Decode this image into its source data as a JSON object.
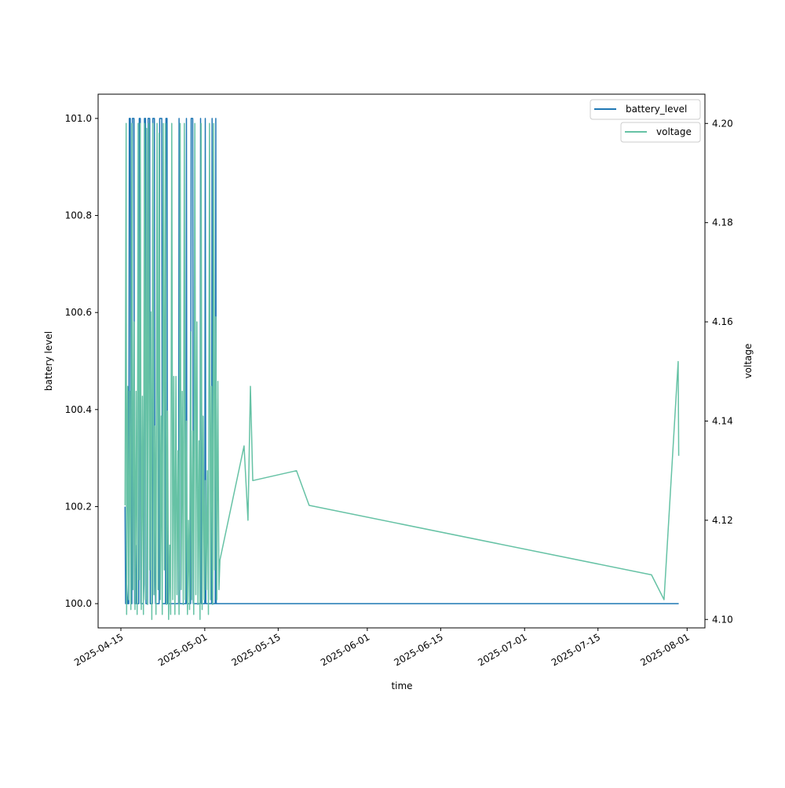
{
  "chart_data": {
    "type": "line",
    "title": "",
    "xlabel": "time",
    "ylabel_left": "battery level",
    "ylabel_right": "voltage",
    "x_unit": "days since 2025-04-15",
    "xlim": [
      -4.34,
      111.4
    ],
    "ylim_left": [
      99.95,
      101.05
    ],
    "ylim_right": [
      4.0983,
      4.2059
    ],
    "x_ticks": [
      {
        "day": 0,
        "label": "2025-04-15"
      },
      {
        "day": 16,
        "label": "2025-05-01"
      },
      {
        "day": 30,
        "label": "2025-05-15"
      },
      {
        "day": 47,
        "label": "2025-06-01"
      },
      {
        "day": 61,
        "label": "2025-06-15"
      },
      {
        "day": 77,
        "label": "2025-07-01"
      },
      {
        "day": 91,
        "label": "2025-07-15"
      },
      {
        "day": 108,
        "label": "2025-08-01"
      }
    ],
    "y_ticks_left": [
      {
        "value": 100.0,
        "label": "100.0"
      },
      {
        "value": 100.2,
        "label": "100.2"
      },
      {
        "value": 100.4,
        "label": "100.4"
      },
      {
        "value": 100.6,
        "label": "100.6"
      },
      {
        "value": 100.8,
        "label": "100.8"
      },
      {
        "value": 101.0,
        "label": "101.0"
      }
    ],
    "y_ticks_right": [
      {
        "value": 4.1,
        "label": "4.10"
      },
      {
        "value": 4.12,
        "label": "4.12"
      },
      {
        "value": 4.14,
        "label": "4.14"
      },
      {
        "value": 4.16,
        "label": "4.16"
      },
      {
        "value": 4.18,
        "label": "4.18"
      },
      {
        "value": 4.2,
        "label": "4.20"
      }
    ],
    "legend_left": {
      "label": "battery_level",
      "placement": "upper-right"
    },
    "legend_right": {
      "label": "voltage",
      "placement": "upper-right"
    },
    "series": [
      {
        "name": "battery_level",
        "axis": "left",
        "color": "#1f77b4",
        "points": [
          [
            0.8,
            100.2
          ],
          [
            0.9,
            100
          ],
          [
            1.1,
            100.04
          ],
          [
            1.3,
            100
          ],
          [
            1.5,
            100
          ],
          [
            1.6,
            101
          ],
          [
            1.8,
            101
          ],
          [
            1.9,
            100
          ],
          [
            2.1,
            100
          ],
          [
            2.2,
            101
          ],
          [
            2.5,
            101
          ],
          [
            2.6,
            100
          ],
          [
            2.9,
            100
          ],
          [
            3.0,
            100.12
          ],
          [
            3.1,
            100
          ],
          [
            3.4,
            100
          ],
          [
            3.5,
            101
          ],
          [
            3.7,
            101
          ],
          [
            3.8,
            100
          ],
          [
            4.3,
            100
          ],
          [
            4.4,
            100.04
          ],
          [
            4.5,
            101
          ],
          [
            4.7,
            101
          ],
          [
            4.8,
            100
          ],
          [
            5.1,
            100
          ],
          [
            5.2,
            101
          ],
          [
            5.5,
            101
          ],
          [
            5.6,
            100
          ],
          [
            6.0,
            100
          ],
          [
            6.1,
            101
          ],
          [
            6.4,
            101
          ],
          [
            6.5,
            100.08
          ],
          [
            6.6,
            100
          ],
          [
            7.3,
            100
          ],
          [
            7.4,
            101
          ],
          [
            7.8,
            101
          ],
          [
            7.9,
            100
          ],
          [
            8.5,
            100
          ],
          [
            8.6,
            101
          ],
          [
            8.8,
            101
          ],
          [
            8.9,
            100
          ],
          [
            11.0,
            100
          ],
          [
            11.1,
            101
          ],
          [
            11.2,
            100
          ],
          [
            12.4,
            100
          ],
          [
            12.5,
            101
          ],
          [
            12.6,
            100
          ],
          [
            13.3,
            100
          ],
          [
            13.4,
            101
          ],
          [
            13.7,
            101
          ],
          [
            13.8,
            100
          ],
          [
            15.1,
            100
          ],
          [
            15.2,
            101
          ],
          [
            15.3,
            100
          ],
          [
            16.0,
            100
          ],
          [
            16.1,
            101
          ],
          [
            16.2,
            100
          ],
          [
            17.3,
            100
          ],
          [
            17.4,
            101
          ],
          [
            17.5,
            100
          ],
          [
            18.0,
            100
          ],
          [
            18.1,
            101
          ],
          [
            18.2,
            100
          ],
          [
            106.4,
            100
          ]
        ]
      },
      {
        "name": "voltage",
        "axis": "right",
        "color": "#66c2a5",
        "points": [
          [
            0.8,
            4.123
          ],
          [
            1.0,
            4.2
          ],
          [
            1.1,
            4.101
          ],
          [
            1.3,
            4.147
          ],
          [
            1.5,
            4.104
          ],
          [
            1.7,
            4.146
          ],
          [
            1.9,
            4.102
          ],
          [
            2.1,
            4.2
          ],
          [
            2.3,
            4.106
          ],
          [
            2.5,
            4.16
          ],
          [
            2.7,
            4.102
          ],
          [
            2.9,
            4.146
          ],
          [
            3.1,
            4.101
          ],
          [
            3.3,
            4.2
          ],
          [
            3.5,
            4.108
          ],
          [
            3.7,
            4.2
          ],
          [
            3.9,
            4.102
          ],
          [
            4.1,
            4.145
          ],
          [
            4.3,
            4.101
          ],
          [
            4.5,
            4.2
          ],
          [
            4.7,
            4.104
          ],
          [
            4.9,
            4.199
          ],
          [
            5.1,
            4.103
          ],
          [
            5.3,
            4.2
          ],
          [
            5.5,
            4.11
          ],
          [
            5.7,
            4.162
          ],
          [
            5.9,
            4.1
          ],
          [
            6.1,
            4.2
          ],
          [
            6.3,
            4.105
          ],
          [
            6.5,
            4.139
          ],
          [
            6.7,
            4.101
          ],
          [
            6.9,
            4.2
          ],
          [
            7.1,
            4.106
          ],
          [
            7.3,
            4.198
          ],
          [
            7.5,
            4.104
          ],
          [
            7.7,
            4.141
          ],
          [
            7.9,
            4.101
          ],
          [
            8.1,
            4.2
          ],
          [
            8.3,
            4.11
          ],
          [
            8.5,
            4.2
          ],
          [
            8.7,
            4.103
          ],
          [
            8.9,
            4.142
          ],
          [
            9.1,
            4.1
          ],
          [
            9.3,
            4.115
          ],
          [
            9.5,
            4.101
          ],
          [
            9.7,
            4.2
          ],
          [
            9.9,
            4.104
          ],
          [
            10.1,
            4.149
          ],
          [
            10.3,
            4.101
          ],
          [
            10.5,
            4.149
          ],
          [
            10.7,
            4.105
          ],
          [
            10.9,
            4.134
          ],
          [
            11.1,
            4.101
          ],
          [
            11.3,
            4.2
          ],
          [
            11.5,
            4.106
          ],
          [
            11.7,
            4.146
          ],
          [
            11.9,
            4.103
          ],
          [
            12.1,
            4.2
          ],
          [
            12.3,
            4.104
          ],
          [
            12.5,
            4.14
          ],
          [
            12.7,
            4.101
          ],
          [
            12.9,
            4.12
          ],
          [
            13.1,
            4.102
          ],
          [
            13.3,
            4.158
          ],
          [
            13.5,
            4.104
          ],
          [
            13.7,
            4.138
          ],
          [
            13.9,
            4.101
          ],
          [
            14.1,
            4.2
          ],
          [
            14.3,
            4.105
          ],
          [
            14.5,
            4.16
          ],
          [
            14.7,
            4.103
          ],
          [
            14.9,
            4.136
          ],
          [
            15.1,
            4.1
          ],
          [
            15.3,
            4.2
          ],
          [
            15.5,
            4.102
          ],
          [
            15.7,
            4.141
          ],
          [
            15.9,
            4.104
          ],
          [
            16.1,
            4.128
          ],
          [
            16.3,
            4.106
          ],
          [
            16.5,
            4.13
          ],
          [
            16.7,
            4.101
          ],
          [
            16.9,
            4.2
          ],
          [
            17.1,
            4.104
          ],
          [
            17.3,
            4.147
          ],
          [
            17.5,
            4.103
          ],
          [
            17.7,
            4.2
          ],
          [
            17.9,
            4.11
          ],
          [
            18.1,
            4.161
          ],
          [
            18.3,
            4.104
          ],
          [
            18.5,
            4.148
          ],
          [
            18.7,
            4.106
          ],
          [
            18.9,
            4.112
          ],
          [
            23.5,
            4.135
          ],
          [
            24.25,
            4.12
          ],
          [
            24.7,
            4.147
          ],
          [
            25.15,
            4.128
          ],
          [
            33.5,
            4.13
          ],
          [
            35.9,
            4.123
          ],
          [
            101.2,
            4.109
          ],
          [
            103.6,
            4.104
          ],
          [
            106.3,
            4.152
          ],
          [
            106.4,
            4.133
          ]
        ]
      }
    ]
  }
}
